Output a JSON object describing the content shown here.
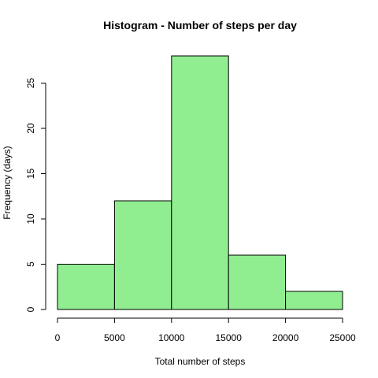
{
  "chart_data": {
    "type": "bar",
    "title": "Histogram - Number of steps per day",
    "xlabel": "Total number of steps",
    "ylabel": "Frequency (days)",
    "bins": [
      {
        "from": 0,
        "to": 5000,
        "count": 5
      },
      {
        "from": 5000,
        "to": 10000,
        "count": 12
      },
      {
        "from": 10000,
        "to": 15000,
        "count": 28
      },
      {
        "from": 15000,
        "to": 20000,
        "count": 6
      },
      {
        "from": 20000,
        "to": 25000,
        "count": 2
      }
    ],
    "xlim": [
      0,
      25000
    ],
    "ylim": [
      0,
      28
    ],
    "x_ticks": [
      0,
      5000,
      10000,
      15000,
      20000,
      25000
    ],
    "y_ticks": [
      0,
      5,
      10,
      15,
      20,
      25
    ],
    "bar_color": "#90EE90",
    "grid": false
  }
}
